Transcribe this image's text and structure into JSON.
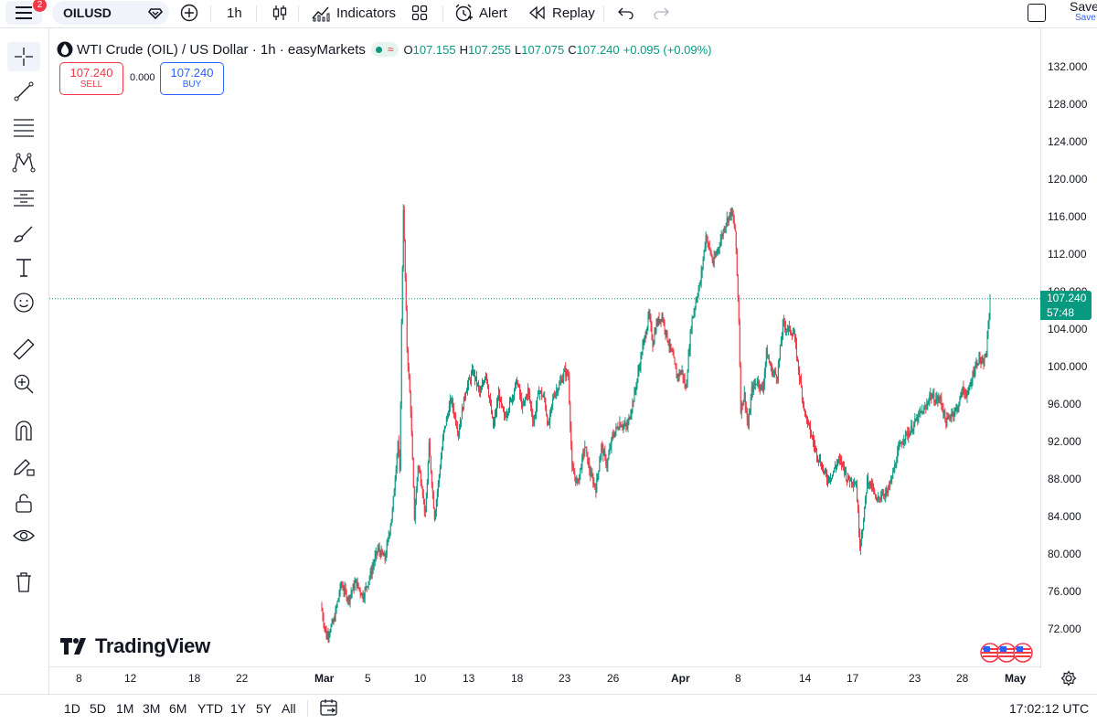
{
  "toolbar": {
    "notification_count": "2",
    "symbol": "OILUSD",
    "interval": "1h",
    "indicators_label": "Indicators",
    "alert_label": "Alert",
    "replay_label": "Replay",
    "save_label": "Save",
    "save_sublabel": "Save"
  },
  "legend": {
    "title": "WTI Crude (OIL) / US Dollar · 1h · easyMarkets",
    "wave_glyph": "≈",
    "o_label": "O",
    "o_value": "107.155",
    "h_label": "H",
    "h_value": "107.255",
    "l_label": "L",
    "l_value": "107.075",
    "c_label": "C",
    "c_value": "107.240",
    "change": "+0.095 (+0.09%)"
  },
  "trade": {
    "sell_price": "107.240",
    "sell_label": "SELL",
    "spread": "0.000",
    "buy_price": "107.240",
    "buy_label": "BUY"
  },
  "price_axis": {
    "ticks": [
      "132.000",
      "128.000",
      "124.000",
      "120.000",
      "116.000",
      "112.000",
      "108.000",
      "104.000",
      "100.000",
      "96.000",
      "92.000",
      "88.000",
      "84.000",
      "80.000",
      "76.000",
      "72.000"
    ],
    "current_price": "107.240",
    "countdown": "57:48"
  },
  "time_axis": {
    "labels": [
      {
        "text": "8",
        "bold": false
      },
      {
        "text": "12",
        "bold": false
      },
      {
        "text": "18",
        "bold": false
      },
      {
        "text": "22",
        "bold": false
      },
      {
        "text": "Mar",
        "bold": true
      },
      {
        "text": "5",
        "bold": false
      },
      {
        "text": "10",
        "bold": false
      },
      {
        "text": "13",
        "bold": false
      },
      {
        "text": "18",
        "bold": false
      },
      {
        "text": "23",
        "bold": false
      },
      {
        "text": "26",
        "bold": false
      },
      {
        "text": "Apr",
        "bold": true
      },
      {
        "text": "8",
        "bold": false
      },
      {
        "text": "14",
        "bold": false
      },
      {
        "text": "17",
        "bold": false
      },
      {
        "text": "23",
        "bold": false
      },
      {
        "text": "28",
        "bold": false
      },
      {
        "text": "May",
        "bold": true
      }
    ]
  },
  "bottom": {
    "ranges": [
      "1D",
      "5D",
      "1M",
      "3M",
      "6M",
      "YTD",
      "1Y",
      "5Y",
      "All"
    ],
    "clock": "17:02:12 UTC"
  },
  "brand": {
    "logo_text": "TradingView"
  },
  "colors": {
    "up": "#089981",
    "down": "#f23645",
    "accent": "#2962ff"
  },
  "chart_data": {
    "type": "candlestick",
    "title": "WTI Crude (OIL) / US Dollar · 1h · easyMarkets",
    "ylim": [
      69.5,
      134
    ],
    "x_ticks": [
      "8",
      "12",
      "18",
      "22",
      "Mar",
      "5",
      "10",
      "13",
      "18",
      "23",
      "26",
      "Apr",
      "8",
      "14",
      "17",
      "23",
      "28",
      "May"
    ],
    "y_ticks": [
      132,
      128,
      124,
      120,
      116,
      112,
      108,
      104,
      100,
      96,
      92,
      88,
      84,
      80,
      76,
      72
    ],
    "last_price": 107.24,
    "price_path": [
      [
        0,
        74.5
      ],
      [
        6,
        71.2
      ],
      [
        14,
        72.8
      ],
      [
        22,
        76.8
      ],
      [
        30,
        75.2
      ],
      [
        38,
        77.0
      ],
      [
        46,
        75.5
      ],
      [
        54,
        77.8
      ],
      [
        62,
        80.5
      ],
      [
        70,
        79.5
      ],
      [
        78,
        84.5
      ],
      [
        84,
        92.0
      ],
      [
        86,
        88.5
      ],
      [
        88,
        104.5
      ],
      [
        90,
        117.0
      ],
      [
        94,
        102.0
      ],
      [
        98,
        95.5
      ],
      [
        102,
        84.0
      ],
      [
        106,
        89.5
      ],
      [
        110,
        87.5
      ],
      [
        114,
        84.0
      ],
      [
        118,
        91.5
      ],
      [
        124,
        84.0
      ],
      [
        128,
        87.5
      ],
      [
        134,
        93.0
      ],
      [
        142,
        96.5
      ],
      [
        150,
        93.0
      ],
      [
        158,
        97.5
      ],
      [
        166,
        99.5
      ],
      [
        174,
        97.0
      ],
      [
        180,
        99.5
      ],
      [
        188,
        93.5
      ],
      [
        194,
        97.0
      ],
      [
        200,
        94.5
      ],
      [
        206,
        96.0
      ],
      [
        214,
        98.5
      ],
      [
        220,
        95.5
      ],
      [
        226,
        97.5
      ],
      [
        232,
        94.0
      ],
      [
        238,
        97.5
      ],
      [
        244,
        96.5
      ],
      [
        248,
        93.5
      ],
      [
        254,
        97.0
      ],
      [
        260,
        98.0
      ],
      [
        266,
        99.5
      ],
      [
        270,
        99.0
      ],
      [
        274,
        89.0
      ],
      [
        280,
        87.5
      ],
      [
        288,
        91.5
      ],
      [
        294,
        88.5
      ],
      [
        300,
        87.0
      ],
      [
        306,
        91.5
      ],
      [
        312,
        89.5
      ],
      [
        318,
        92.5
      ],
      [
        326,
        94.0
      ],
      [
        334,
        93.5
      ],
      [
        342,
        97.0
      ],
      [
        350,
        101.5
      ],
      [
        358,
        105.5
      ],
      [
        362,
        102.5
      ],
      [
        366,
        104.5
      ],
      [
        372,
        105.5
      ],
      [
        378,
        103.0
      ],
      [
        384,
        101.0
      ],
      [
        388,
        99.0
      ],
      [
        394,
        99.5
      ],
      [
        398,
        97.5
      ],
      [
        404,
        104.5
      ],
      [
        410,
        107.5
      ],
      [
        414,
        109.0
      ],
      [
        420,
        114.0
      ],
      [
        428,
        111.0
      ],
      [
        436,
        113.5
      ],
      [
        442,
        115.5
      ],
      [
        448,
        116.5
      ],
      [
        452,
        114.5
      ],
      [
        456,
        105.0
      ],
      [
        458,
        95.5
      ],
      [
        462,
        97.0
      ],
      [
        466,
        93.5
      ],
      [
        470,
        97.5
      ],
      [
        476,
        98.5
      ],
      [
        482,
        97.5
      ],
      [
        486,
        101.5
      ],
      [
        492,
        99.5
      ],
      [
        498,
        99.0
      ],
      [
        504,
        104.5
      ],
      [
        510,
        104.0
      ],
      [
        516,
        103.5
      ],
      [
        522,
        99.0
      ],
      [
        528,
        95.0
      ],
      [
        534,
        93.0
      ],
      [
        540,
        91.0
      ],
      [
        546,
        89.5
      ],
      [
        552,
        88.0
      ],
      [
        558,
        88.5
      ],
      [
        564,
        90.0
      ],
      [
        570,
        89.5
      ],
      [
        574,
        88.0
      ],
      [
        578,
        88.0
      ],
      [
        584,
        87.5
      ],
      [
        588,
        81.0
      ],
      [
        592,
        83.5
      ],
      [
        596,
        88.0
      ],
      [
        602,
        87.0
      ],
      [
        606,
        85.5
      ],
      [
        612,
        86.5
      ],
      [
        618,
        86.5
      ],
      [
        624,
        88.5
      ],
      [
        630,
        91.0
      ],
      [
        636,
        92.5
      ],
      [
        642,
        93.0
      ],
      [
        648,
        94.0
      ],
      [
        654,
        95.0
      ],
      [
        660,
        95.5
      ],
      [
        664,
        97.0
      ],
      [
        670,
        96.5
      ],
      [
        676,
        96.5
      ],
      [
        682,
        94.0
      ],
      [
        688,
        95.0
      ],
      [
        694,
        95.5
      ],
      [
        700,
        97.5
      ],
      [
        706,
        97.0
      ],
      [
        712,
        99.5
      ],
      [
        718,
        101.0
      ],
      [
        722,
        100.0
      ],
      [
        726,
        101.5
      ],
      [
        730,
        107.24
      ]
    ]
  }
}
